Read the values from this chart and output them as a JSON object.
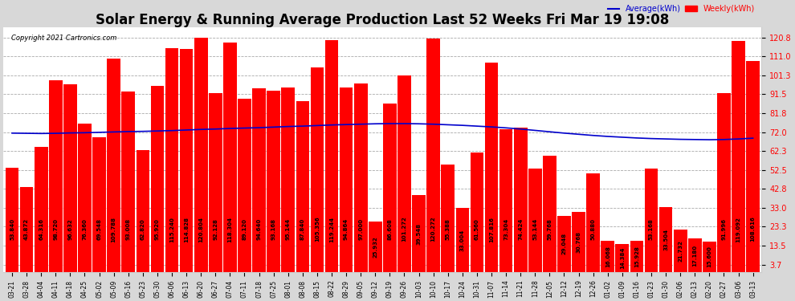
{
  "title": "Solar Energy & Running Average Production Last 52 Weeks Fri Mar 19 19:08",
  "copyright": "Copyright 2021 Cartronics.com",
  "legend_avg": "Average(kWh)",
  "legend_weekly": "Weekly(kWh)",
  "xlabels": [
    "03-21",
    "03-28",
    "04-04",
    "04-11",
    "04-18",
    "04-25",
    "05-02",
    "05-09",
    "05-16",
    "05-23",
    "05-30",
    "06-06",
    "06-13",
    "06-20",
    "06-27",
    "07-04",
    "07-11",
    "07-18",
    "07-25",
    "08-01",
    "08-08",
    "08-15",
    "08-22",
    "08-29",
    "09-05",
    "09-12",
    "09-19",
    "09-26",
    "10-03",
    "10-10",
    "10-17",
    "10-24",
    "10-31",
    "11-07",
    "11-14",
    "11-21",
    "11-28",
    "12-05",
    "12-12",
    "12-19",
    "12-26",
    "01-02",
    "01-09",
    "01-16",
    "01-23",
    "01-30",
    "02-06",
    "02-13",
    "02-20",
    "02-27",
    "03-06",
    "03-13"
  ],
  "weekly_values": [
    53.84,
    43.872,
    64.316,
    98.72,
    96.632,
    76.36,
    69.548,
    109.788,
    93.008,
    62.82,
    95.92,
    115.24,
    114.828,
    120.804,
    92.128,
    118.304,
    89.12,
    94.64,
    93.168,
    95.144,
    87.84,
    105.356,
    119.244,
    94.864,
    97.0,
    25.932,
    86.608,
    101.272,
    39.548,
    120.272,
    55.388,
    33.004,
    61.56,
    107.816,
    73.304,
    74.424,
    53.144,
    59.768,
    29.048,
    30.768,
    50.88,
    16.068,
    14.384,
    15.928,
    53.168,
    33.504,
    21.732,
    17.18,
    15.6,
    91.996,
    119.092,
    108.616
  ],
  "average_values": [
    71.5,
    71.4,
    71.3,
    71.4,
    71.6,
    71.7,
    71.9,
    72.1,
    72.3,
    72.4,
    72.6,
    72.8,
    73.1,
    73.4,
    73.6,
    73.9,
    74.1,
    74.3,
    74.6,
    74.9,
    75.1,
    75.4,
    75.7,
    75.9,
    76.1,
    76.3,
    76.4,
    76.4,
    76.3,
    76.1,
    75.8,
    75.5,
    75.1,
    74.7,
    74.2,
    73.6,
    72.9,
    72.2,
    71.5,
    70.9,
    70.3,
    69.8,
    69.4,
    69.0,
    68.7,
    68.5,
    68.3,
    68.2,
    68.1,
    68.2,
    68.5,
    68.9
  ],
  "bar_color": "#ff0000",
  "avg_line_color": "#0000cc",
  "background_color": "#d8d8d8",
  "plot_bg_color": "#ffffff",
  "title_fontsize": 12,
  "bar_value_fontsize": 5.0,
  "yticks": [
    3.7,
    13.5,
    23.3,
    33.0,
    42.8,
    52.5,
    62.3,
    72.0,
    81.8,
    91.5,
    101.3,
    111.0,
    120.8
  ],
  "ymax": 126,
  "ymin": 0
}
